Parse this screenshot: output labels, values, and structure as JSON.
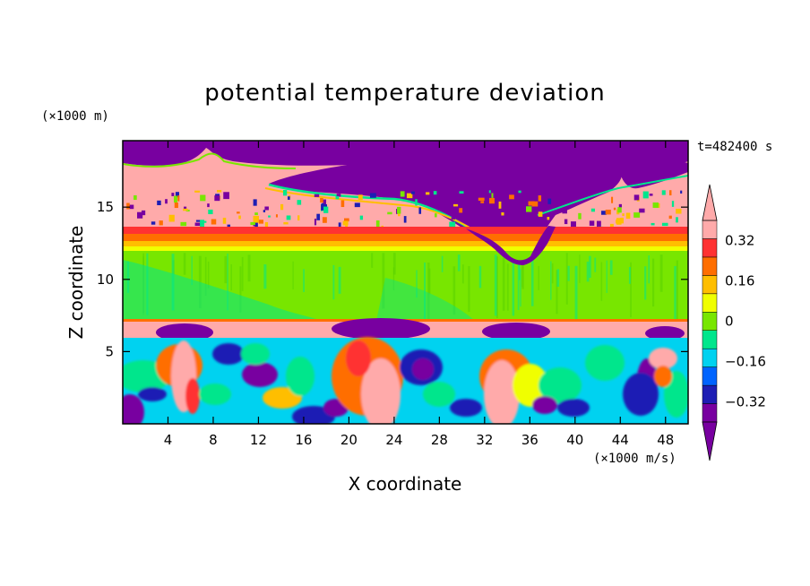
{
  "chart_data": {
    "type": "heatmap",
    "title": "potential temperature deviation",
    "xlabel": "X coordinate",
    "ylabel": "Z coordinate",
    "x_unit": "(×1000 m/s)",
    "y_unit": "(×1000 m)",
    "time_label": "t=482400 s",
    "xlim": [
      0,
      50
    ],
    "ylim": [
      0,
      19.6
    ],
    "x_ticks": [
      4,
      8,
      12,
      16,
      20,
      24,
      28,
      32,
      36,
      40,
      44,
      48
    ],
    "y_ticks": [
      5,
      10,
      15
    ],
    "colorbar": {
      "levels": [
        -0.4,
        -0.32,
        -0.24,
        -0.16,
        -0.08,
        0,
        0.08,
        0.16,
        0.24,
        0.32,
        0.4
      ],
      "tick_labels": [
        "0.32",
        "0.16",
        "0",
        "−0.16",
        "−0.32"
      ],
      "tick_values": [
        0.32,
        0.16,
        0,
        -0.16,
        -0.32
      ],
      "colors": [
        "#7800a0",
        "#1e1eb4",
        "#0064ff",
        "#00d2f0",
        "#00e68c",
        "#78e600",
        "#f0ff00",
        "#ffbe00",
        "#ff6e00",
        "#ff3232",
        "#ffaaaa"
      ],
      "extend": "both"
    },
    "layers": [
      {
        "z": [
          0,
          7.2
        ],
        "category": "turbulent lower layer, values about -0.4 to +0.4"
      },
      {
        "z": [
          7.2,
          12.4
        ],
        "value": 0.04
      },
      {
        "z": [
          12.4,
          13.8
        ],
        "value_range": [
          0.2,
          0.36
        ]
      },
      {
        "z": [
          13.8,
          19.6
        ],
        "value_range": [
          0.4,
          -0.4
        ],
        "category": "upper layer with large negative patch near top"
      }
    ]
  },
  "icons": {
    "colorbar_top_arrow": "triangle-up-icon",
    "colorbar_bottom_arrow": "triangle-down-icon"
  }
}
